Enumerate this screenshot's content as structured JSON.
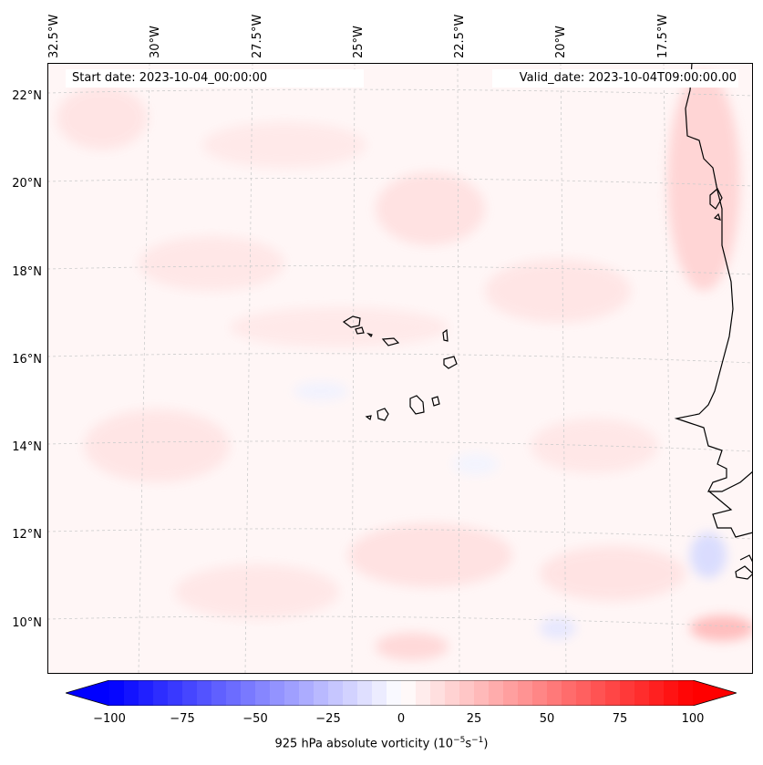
{
  "map": {
    "start_label": "Start date: 2023-10-04_00:00:00",
    "valid_label": "Valid_date: 2023-10-04T09:00:00.00",
    "lon_labels": [
      "32.5°W",
      "30°W",
      "27.5°W",
      "25°W",
      "22.5°W",
      "20°W",
      "17.5°W"
    ],
    "lat_labels": [
      "22°N",
      "20°N",
      "18°N",
      "16°N",
      "14°N",
      "12°N",
      "10°N"
    ],
    "extent": {
      "lon_min": -33.0,
      "lon_max": -16.0,
      "lat_min": 9.0,
      "lat_max": 22.8
    },
    "coastline_color": "#000000",
    "gridline_color": "#cccccc"
  },
  "colorbar": {
    "label_prefix": "925 hPa absolute vorticity (10",
    "label_exp1": "−5",
    "label_mid": "s",
    "label_exp2": "−1",
    "label_suffix": ")",
    "vmin": -100,
    "vmax": 100,
    "ticks": [
      "−100",
      "−75",
      "−50",
      "−25",
      "0",
      "25",
      "50",
      "75",
      "100"
    ],
    "tick_values": [
      -100,
      -75,
      -50,
      -25,
      0,
      25,
      50,
      75,
      100
    ],
    "cmap": "bwr",
    "extend": "both",
    "colors": {
      "low": "#0000ff",
      "mid": "#ffffff",
      "high": "#ff0000"
    }
  }
}
